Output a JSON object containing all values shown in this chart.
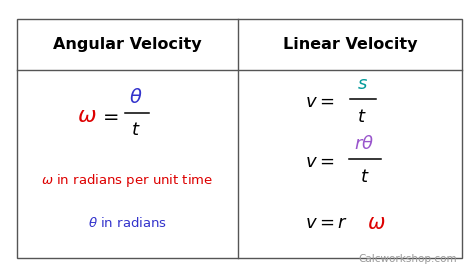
{
  "bg_color": "#ffffff",
  "header_left": "Angular Velocity",
  "header_right": "Linear Velocity",
  "border_color": "#555555",
  "red": "#dd0000",
  "blue": "#3333cc",
  "teal": "#009999",
  "purple": "#9955cc",
  "black": "#000000",
  "gray": "#999999",
  "watermark": "Calcworkshop.com"
}
